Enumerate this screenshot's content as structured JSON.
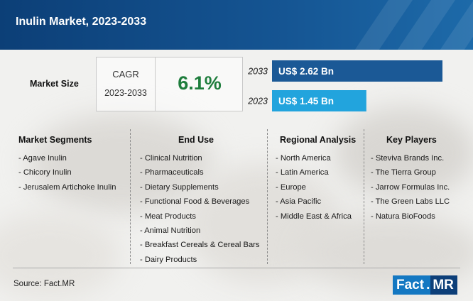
{
  "header": {
    "title": "Inulin Market, 2023-2033"
  },
  "market_size": {
    "label": "Market Size",
    "cagr_label": "CAGR",
    "cagr_period": "2023-2033",
    "cagr_value": "6.1%"
  },
  "chart_data": {
    "type": "bar",
    "orientation": "horizontal",
    "categories": [
      "2033",
      "2023"
    ],
    "values": [
      2.62,
      1.45
    ],
    "value_labels": [
      "US$ 2.62 Bn",
      "US$ 1.45 Bn"
    ],
    "unit": "US$ Bn",
    "colors": [
      "#1b5996",
      "#22a4dd"
    ],
    "grid": false
  },
  "columns": [
    {
      "heading": "Market Segments",
      "items": [
        "- Agave Inulin",
        "- Chicory Inulin",
        "- Jerusalem Artichoke Inulin"
      ]
    },
    {
      "heading": "End Use",
      "items": [
        "- Clinical Nutrition",
        "- Pharmaceuticals",
        "- Dietary Supplements",
        "- Functional Food & Beverages",
        "- Meat Products",
        "- Animal Nutrition",
        "- Breakfast Cereals & Cereal Bars",
        "- Dairy Products"
      ]
    },
    {
      "heading": "Regional Analysis",
      "items": [
        "- North America",
        "- Latin America",
        "- Europe",
        "- Asia Pacific",
        "- Middle East & Africa"
      ]
    },
    {
      "heading": "Key Players",
      "items": [
        "- Steviva Brands Inc.",
        "- The Tierra Group",
        "- Jarrow Formulas Inc.",
        "- The Green Labs LLC",
        "- Natura BioFoods"
      ]
    }
  ],
  "footer": {
    "source": "Source: Fact.MR",
    "logo_left": "Fact",
    "logo_dot": ".",
    "logo_right": "MR"
  },
  "colors": {
    "header": "#0c3f77",
    "cagr_value": "#1e7d3c",
    "logo_light": "#1478c2",
    "logo_dark": "#0d3f79"
  }
}
